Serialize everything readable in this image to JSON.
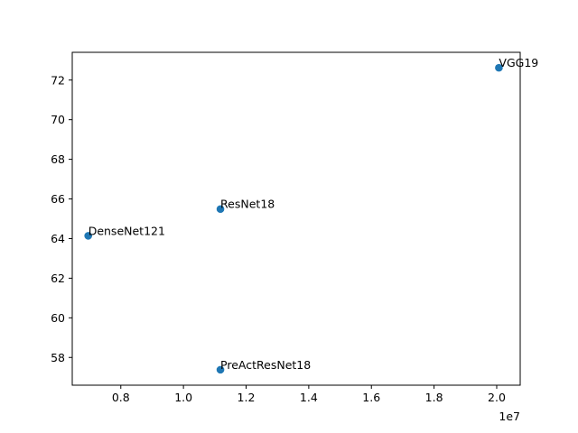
{
  "chart_data": {
    "type": "scatter",
    "title": "",
    "xlabel": "",
    "ylabel": "",
    "x_offset_text": "1e7",
    "xlim": [
      6450000,
      20750000
    ],
    "ylim": [
      56.6,
      73.4
    ],
    "x_ticks": [
      {
        "value": 8000000,
        "label": "0.8"
      },
      {
        "value": 10000000,
        "label": "1.0"
      },
      {
        "value": 12000000,
        "label": "1.2"
      },
      {
        "value": 14000000,
        "label": "1.4"
      },
      {
        "value": 16000000,
        "label": "1.6"
      },
      {
        "value": 18000000,
        "label": "1.8"
      },
      {
        "value": 20000000,
        "label": "2.0"
      }
    ],
    "y_ticks": [
      {
        "value": 58,
        "label": "58"
      },
      {
        "value": 60,
        "label": "60"
      },
      {
        "value": 62,
        "label": "62"
      },
      {
        "value": 64,
        "label": "64"
      },
      {
        "value": 66,
        "label": "66"
      },
      {
        "value": 68,
        "label": "68"
      },
      {
        "value": 70,
        "label": "70"
      },
      {
        "value": 72,
        "label": "72"
      }
    ],
    "grid": false,
    "marker_color": "#1f77b4",
    "points": [
      {
        "label": "VGG19",
        "x": 20070000,
        "y": 72.62
      },
      {
        "label": "ResNet18",
        "x": 11180000,
        "y": 65.49
      },
      {
        "label": "DenseNet121",
        "x": 6960000,
        "y": 64.14
      },
      {
        "label": "PreActResNet18",
        "x": 11180000,
        "y": 57.38
      }
    ]
  }
}
